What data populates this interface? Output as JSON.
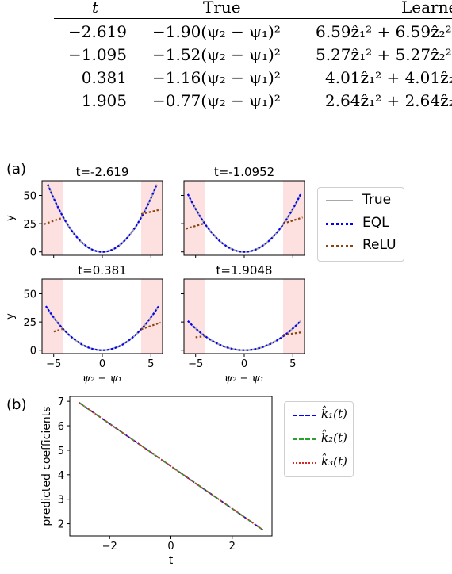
{
  "table": {
    "headers": [
      "t",
      "True",
      "Learne"
    ],
    "rows": [
      {
        "t": "−2.619",
        "true": "−1.90(ψ₂ − ψ₁)²",
        "learned": "6.59ẑ₁² + 6.59ẑ₂² −"
      },
      {
        "t": "−1.095",
        "true": "−1.52(ψ₂ − ψ₁)²",
        "learned": "5.27ẑ₁² + 5.27ẑ₂² −"
      },
      {
        "t": "0.381",
        "true": "−1.16(ψ₂ − ψ₁)²",
        "learned": "4.01ẑ₁² + 4.01ẑ₂²"
      },
      {
        "t": "1.905",
        "true": "−0.77(ψ₂ − ψ₁)²",
        "learned": "2.64ẑ₁² + 2.64ẑ₂²"
      }
    ]
  },
  "panel_a_label": "(a)",
  "panel_b_label": "(b)",
  "legend_a": [
    "True",
    "EQL",
    "ReLU"
  ],
  "legend_b": [
    "k̂₁(t)",
    "k̂₂(t)",
    "k̂₃(t)"
  ],
  "colors": {
    "true": "#a8a8a8",
    "eql": "#0000ff",
    "relu": "#8b4513",
    "shade": "#fde0e0",
    "k1": "#0000ff",
    "k2": "#2ca02c",
    "k3": "#d62728"
  },
  "chart_data": [
    {
      "type": "line",
      "title": "t=-2.619",
      "xlabel": "",
      "ylabel": "y",
      "xlim": [
        -6.2,
        6.2
      ],
      "ylim": [
        -3,
        63
      ],
      "xticks": [
        -5,
        0,
        5
      ],
      "yticks": [
        0,
        25,
        50
      ],
      "shaded_x": [
        [
          -6.2,
          -4
        ],
        [
          4,
          6.2
        ]
      ],
      "coef": 1.9,
      "relu_left": [
        [
          -6.0,
          24.5
        ],
        [
          -4.0,
          30.5
        ]
      ],
      "relu_right": [
        [
          4.0,
          33.5
        ],
        [
          6.0,
          37.5
        ]
      ],
      "series": [
        {
          "name": "True"
        },
        {
          "name": "EQL"
        },
        {
          "name": "ReLU"
        }
      ]
    },
    {
      "type": "line",
      "title": "t=-1.0952",
      "xlabel": "",
      "ylabel": "",
      "xlim": [
        -6.2,
        6.2
      ],
      "ylim": [
        -3,
        63
      ],
      "xticks": [
        -5,
        0,
        5
      ],
      "yticks": [
        0,
        25,
        50
      ],
      "shaded_x": [
        [
          -6.2,
          -4
        ],
        [
          4,
          6.2
        ]
      ],
      "coef": 1.52,
      "relu_left": [
        [
          -6.0,
          20.5
        ],
        [
          -4.0,
          25.5
        ]
      ],
      "relu_right": [
        [
          4.0,
          25.0
        ],
        [
          6.0,
          30.5
        ]
      ],
      "series": [
        {
          "name": "True"
        },
        {
          "name": "EQL"
        },
        {
          "name": "ReLU"
        }
      ]
    },
    {
      "type": "line",
      "title": "t=0.381",
      "xlabel": "ψ₂ − ψ₁",
      "ylabel": "y",
      "xlim": [
        -6.2,
        6.2
      ],
      "ylim": [
        -3,
        63
      ],
      "xticks": [
        -5,
        0,
        5
      ],
      "yticks": [
        0,
        25,
        50
      ],
      "shaded_x": [
        [
          -6.2,
          -4
        ],
        [
          4,
          6.2
        ]
      ],
      "coef": 1.16,
      "relu_left": [
        [
          -5.0,
          16.5
        ],
        [
          -4.0,
          19.0
        ]
      ],
      "relu_right": [
        [
          4.0,
          18.5
        ],
        [
          6.0,
          24.5
        ]
      ],
      "series": [
        {
          "name": "True"
        },
        {
          "name": "EQL"
        },
        {
          "name": "ReLU"
        }
      ]
    },
    {
      "type": "line",
      "title": "t=1.9048",
      "xlabel": "ψ₂ − ψ₁",
      "ylabel": "",
      "xlim": [
        -6.2,
        6.2
      ],
      "ylim": [
        -3,
        63
      ],
      "xticks": [
        -5,
        0,
        5
      ],
      "yticks": [
        0,
        25,
        50
      ],
      "shaded_x": [
        [
          -6.2,
          -4
        ],
        [
          4,
          6.2
        ]
      ],
      "coef": 0.77,
      "relu_left": [
        [
          -5.0,
          11.5
        ],
        [
          -4.0,
          12.5
        ]
      ],
      "relu_right": [
        [
          4.0,
          13.5
        ],
        [
          6.0,
          16.0
        ]
      ],
      "series": [
        {
          "name": "True"
        },
        {
          "name": "EQL"
        },
        {
          "name": "ReLU"
        }
      ]
    },
    {
      "type": "line",
      "title": "",
      "xlabel": "t",
      "ylabel": "predicted coefficients",
      "xlim": [
        -3.3,
        3.3
      ],
      "ylim": [
        1.5,
        7.2
      ],
      "xticks": [
        -2,
        0,
        2
      ],
      "yticks": [
        2,
        3,
        4,
        5,
        6,
        7
      ],
      "x": [
        -3.0,
        3.0
      ],
      "series": [
        {
          "name": "k̂₁(t)",
          "values": [
            6.95,
            1.75
          ]
        },
        {
          "name": "k̂₂(t)",
          "values": [
            6.95,
            1.75
          ]
        },
        {
          "name": "k̂₃(t)",
          "values": [
            6.95,
            1.75
          ]
        }
      ]
    }
  ]
}
